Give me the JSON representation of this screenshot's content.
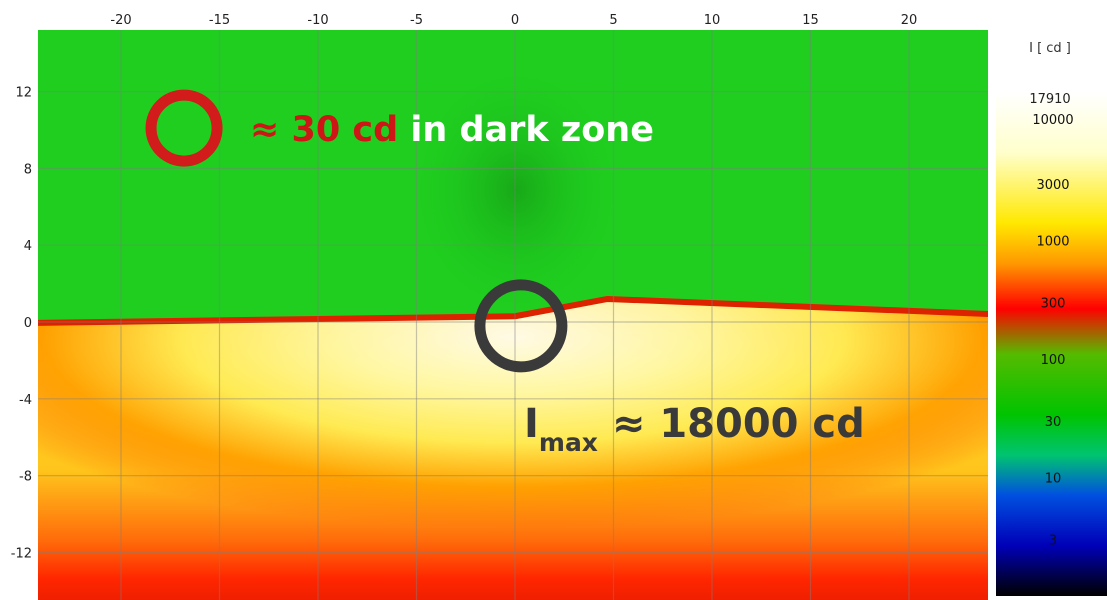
{
  "chart_data": {
    "type": "heatmap",
    "title": "",
    "xlabel": "",
    "ylabel": "",
    "x_ticks": [
      -20,
      -15,
      -10,
      -5,
      0,
      5,
      10,
      15,
      20
    ],
    "y_ticks": [
      12,
      8,
      4,
      0,
      -4,
      -8,
      -12
    ],
    "xlim": [
      -24.5,
      24.5
    ],
    "ylim": [
      -14.5,
      14.5
    ],
    "grid": true,
    "cutoff_line": [
      {
        "x": -24.5,
        "y": -0.05
      },
      {
        "x": 0,
        "y": 0.3
      },
      {
        "x": 4.7,
        "y": 1.2
      },
      {
        "x": 24.5,
        "y": 0.4
      }
    ],
    "max_point": {
      "x": 0.3,
      "y": -0.2
    },
    "dark_zone_point": {
      "x": -16.8,
      "y": 10.1
    },
    "colorbar": {
      "title": "I [ cd ]",
      "max_label": "17910",
      "labels": [
        "10000",
        "3000",
        "1000",
        "300",
        "100",
        "30",
        "10",
        "3"
      ],
      "scale": "log",
      "range": [
        1,
        17910
      ]
    },
    "annotations": {
      "dark_zone_value": "≈ 30 cd",
      "dark_zone_text": "in dark zone",
      "imax_symbol": "I",
      "imax_subscript": "max",
      "imax_value": "≈ 18000 cd"
    }
  },
  "colors": {
    "green_field": "#1fce1f",
    "yellow_core": "#fffa9a",
    "orange_edge": "#ff6e00",
    "red_line": "#dd2200",
    "grid": "#7f7f7f",
    "dark_zone_circle": "#d21b1b",
    "max_circle": "#3a3a3a"
  }
}
